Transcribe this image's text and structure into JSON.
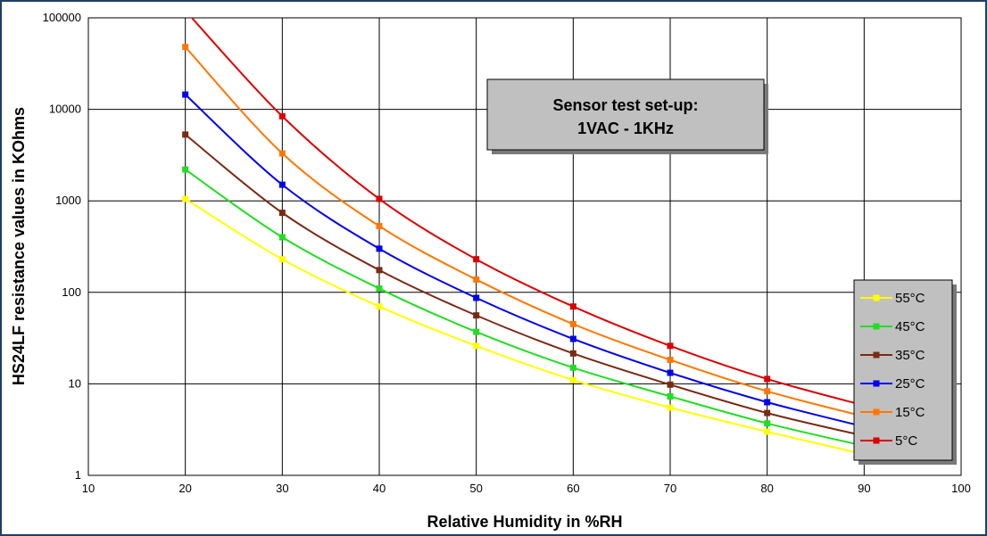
{
  "chart_data": {
    "type": "line",
    "title": "",
    "xlabel": "Relative Humidity in %RH",
    "ylabel": "HS24LF resistance values in KOhms",
    "xlim": [
      10,
      100
    ],
    "ylim": [
      1,
      100000
    ],
    "yscale": "log",
    "grid": true,
    "legend_position": "right",
    "x_ticks": [
      "10",
      "20",
      "30",
      "40",
      "50",
      "60",
      "70",
      "80",
      "90",
      "100"
    ],
    "y_ticks": [
      "1",
      "10",
      "100",
      "1000",
      "10000",
      "100000"
    ],
    "annotation": {
      "line1": "Sensor test set-up:",
      "line2": "1VAC - 1KHz"
    },
    "x": [
      20,
      30,
      40,
      50,
      60,
      70,
      80,
      90
    ],
    "series": [
      {
        "name": "55°C",
        "color": "#ffff00",
        "values": [
          1050,
          230,
          70,
          26,
          11,
          5.5,
          3.0,
          1.7
        ]
      },
      {
        "name": "45°C",
        "color": "#22dd22",
        "values": [
          2200,
          400,
          110,
          37,
          15,
          7.3,
          3.7,
          2.1
        ]
      },
      {
        "name": "35°C",
        "color": "#7b2a12",
        "values": [
          5300,
          740,
          175,
          56,
          21.5,
          9.8,
          4.8,
          2.7
        ]
      },
      {
        "name": "25°C",
        "color": "#0000ee",
        "values": [
          14500,
          1500,
          300,
          87,
          31,
          13.2,
          6.3,
          3.4
        ]
      },
      {
        "name": "15°C",
        "color": "#ff7700",
        "values": [
          48000,
          3300,
          530,
          138,
          45,
          18.3,
          8.3,
          4.4
        ]
      },
      {
        "name": "5°C",
        "color": "#dd0000",
        "values": [
          120000,
          8400,
          1050,
          230,
          70,
          26,
          11.3,
          5.8
        ]
      }
    ]
  }
}
